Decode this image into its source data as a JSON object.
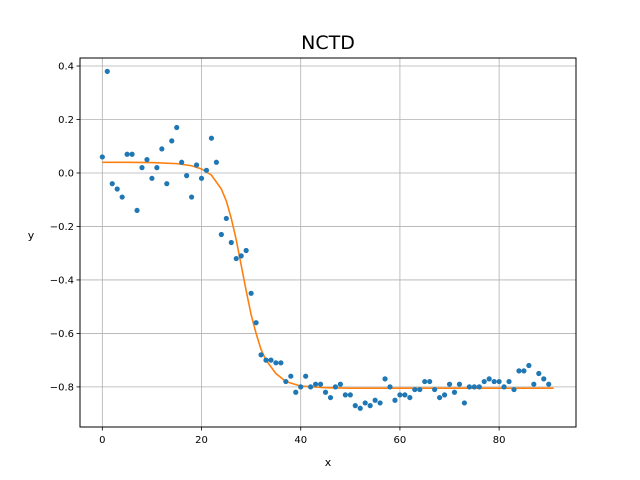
{
  "chart_data": {
    "type": "scatter",
    "title": "NCTD",
    "xlabel": "x",
    "ylabel": "y",
    "xlim": [
      -4.5,
      95.5
    ],
    "ylim": [
      -0.95,
      0.43
    ],
    "xticks": [
      0,
      20,
      40,
      60,
      80
    ],
    "yticks": [
      0.4,
      0.2,
      0.0,
      -0.2,
      -0.4,
      -0.6,
      -0.8
    ],
    "ytick_labels": [
      "0.4",
      "0.2",
      "0.0",
      "−0.2",
      "−0.4",
      "−0.6",
      "−0.8"
    ],
    "grid": true,
    "colors": {
      "points": "#1f77b4",
      "fit": "#ff7f0e",
      "grid": "#b0b0b0"
    },
    "series": [
      {
        "type": "scatter",
        "x": [
          0,
          1,
          2,
          3,
          4,
          5,
          6,
          7,
          8,
          9,
          10,
          11,
          12,
          13,
          14,
          15,
          16,
          17,
          18,
          19,
          20,
          21,
          22,
          23,
          24,
          25,
          26,
          27,
          28,
          29,
          30,
          31,
          32,
          33,
          34,
          35,
          36,
          37,
          38,
          39,
          40,
          41,
          42,
          43,
          44,
          45,
          46,
          47,
          48,
          49,
          50,
          51,
          52,
          53,
          54,
          55,
          56,
          57,
          58,
          59,
          60,
          61,
          62,
          63,
          64,
          65,
          66,
          67,
          68,
          69,
          70,
          71,
          72,
          73,
          74,
          75,
          76,
          77,
          78,
          79,
          80,
          81,
          82,
          83,
          84,
          85,
          86,
          87,
          88,
          89,
          90
        ],
        "y": [
          0.06,
          0.38,
          -0.04,
          -0.06,
          -0.09,
          0.07,
          0.07,
          -0.14,
          0.02,
          0.05,
          -0.02,
          0.02,
          0.09,
          -0.04,
          0.12,
          0.17,
          0.04,
          -0.01,
          -0.09,
          0.03,
          -0.02,
          0.01,
          0.13,
          0.04,
          -0.23,
          -0.17,
          -0.26,
          -0.32,
          -0.31,
          -0.29,
          -0.45,
          -0.56,
          -0.68,
          -0.7,
          -0.7,
          -0.71,
          -0.71,
          -0.78,
          -0.76,
          -0.82,
          -0.8,
          -0.76,
          -0.8,
          -0.79,
          -0.79,
          -0.82,
          -0.84,
          -0.8,
          -0.79,
          -0.83,
          -0.83,
          -0.87,
          -0.88,
          -0.86,
          -0.87,
          -0.85,
          -0.86,
          -0.77,
          -0.8,
          -0.85,
          -0.83,
          -0.83,
          -0.84,
          -0.81,
          -0.81,
          -0.78,
          -0.78,
          -0.81,
          -0.84,
          -0.83,
          -0.79,
          -0.82,
          -0.79,
          -0.86,
          -0.8,
          -0.8,
          -0.8,
          -0.78,
          -0.77,
          -0.78,
          -0.78,
          -0.8,
          -0.78,
          -0.81,
          -0.74,
          -0.74,
          -0.72,
          -0.79,
          -0.75,
          -0.77,
          -0.79
        ]
      },
      {
        "type": "line",
        "x": [
          0,
          5,
          10,
          15,
          18,
          20,
          22,
          24,
          25,
          26,
          27,
          28,
          29,
          30,
          31,
          32,
          33,
          35,
          37,
          40,
          45,
          50,
          60,
          70,
          80,
          91
        ],
        "y": [
          0.04,
          0.04,
          0.039,
          0.035,
          0.027,
          0.015,
          -0.008,
          -0.06,
          -0.105,
          -0.17,
          -0.25,
          -0.345,
          -0.44,
          -0.53,
          -0.6,
          -0.66,
          -0.7,
          -0.75,
          -0.78,
          -0.797,
          -0.803,
          -0.805,
          -0.805,
          -0.805,
          -0.805,
          -0.805
        ]
      }
    ]
  }
}
